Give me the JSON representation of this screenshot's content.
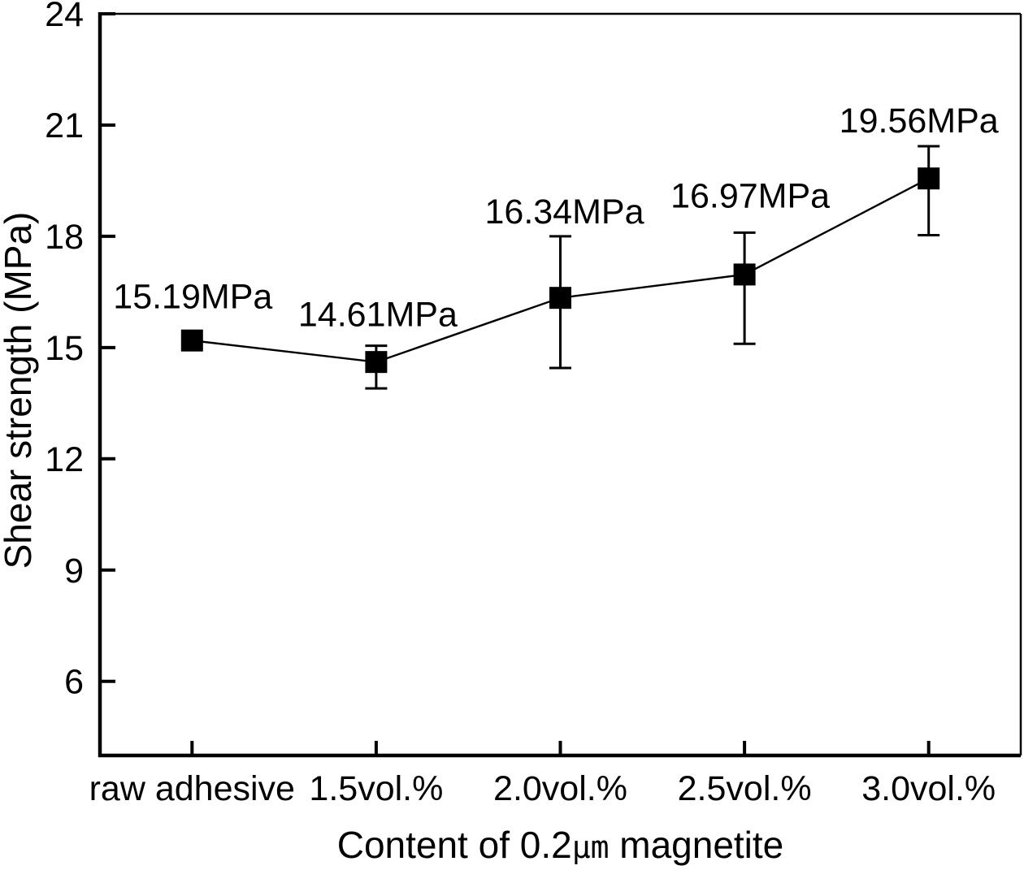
{
  "chart_data": {
    "type": "line",
    "title": "",
    "xlabel": "Content of 0.2μm magnetite",
    "xlabel_parts": {
      "prefix": "Content of 0.2",
      "mu": "μm",
      "suffix": " magnetite"
    },
    "ylabel": "Shear strength (MPa)",
    "ylim": [
      4,
      24
    ],
    "yticks": [
      6,
      9,
      12,
      15,
      18,
      21,
      24
    ],
    "categories": [
      "raw adhesive",
      "1.5vol.%",
      "2.0vol.%",
      "2.5vol.%",
      "3.0vol.%"
    ],
    "grid": false,
    "legend": "none",
    "colors": {
      "foreground": "#000000",
      "background": "#ffffff"
    },
    "series": [
      {
        "name": "shear strength",
        "marker": "square",
        "color": "#000000",
        "points": [
          {
            "category": "raw adhesive",
            "value": 15.19,
            "label": "15.19MPa",
            "err_upper": null,
            "err_lower": null
          },
          {
            "category": "1.5vol.%",
            "value": 14.61,
            "label": "14.61MPa",
            "err_upper": 15.05,
            "err_lower": 13.9
          },
          {
            "category": "2.0vol.%",
            "value": 16.34,
            "label": "16.34MPa",
            "err_upper": 18.0,
            "err_lower": 14.45
          },
          {
            "category": "2.5vol.%",
            "value": 16.97,
            "label": "16.97MPa",
            "err_upper": 18.1,
            "err_lower": 15.1
          },
          {
            "category": "3.0vol.%",
            "value": 19.56,
            "label": "19.56MPa",
            "err_upper": 20.43,
            "err_lower": 18.03
          }
        ]
      }
    ],
    "label_layout": {
      "dx": [
        1,
        2,
        5,
        7,
        -12
      ],
      "gap": [
        26,
        24,
        16,
        31,
        17
      ]
    }
  }
}
